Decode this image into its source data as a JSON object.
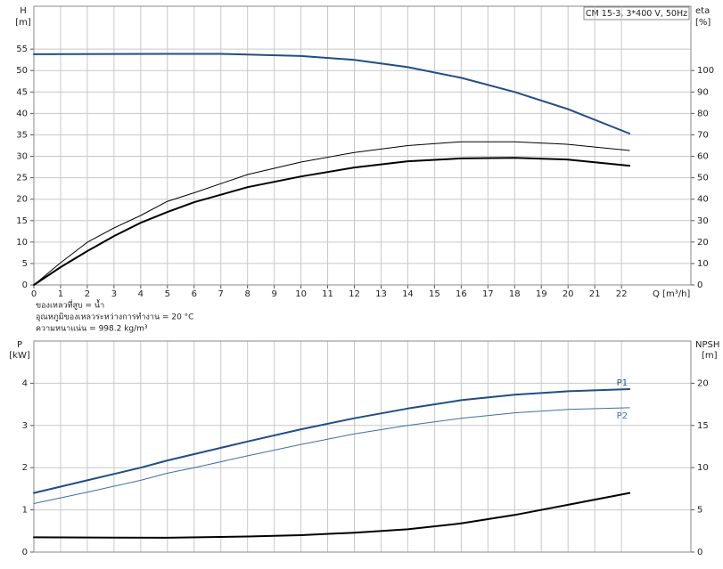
{
  "chart_data": [
    {
      "type": "line",
      "title": "CM 15-3, 3*400 V, 50Hz",
      "ylabel": "H",
      "yunit": "[m]",
      "y2label": "eta",
      "y2unit": "[%]",
      "xlabel": "Q [m³/h]",
      "notes": [
        "ของเหลวที่สูบ = น้ำ",
        "อุณหภูมิของเหลวระหว่างการทำงาน = 20 °C",
        "ความหนาแน่น = 998.2 kg/m³"
      ],
      "xlim": [
        0,
        24.6
      ],
      "xticks": [
        0,
        1,
        2,
        3,
        4,
        5,
        6,
        7,
        8,
        9,
        10,
        11,
        12,
        13,
        14,
        15,
        16,
        17,
        18,
        19,
        20,
        21,
        22
      ],
      "ylim": [
        0,
        65
      ],
      "yticks": [
        0,
        5,
        10,
        15,
        20,
        25,
        30,
        35,
        40,
        45,
        50,
        55
      ],
      "y2lim": [
        0,
        130
      ],
      "y2ticks": [
        0,
        10,
        20,
        30,
        40,
        50,
        60,
        70,
        80,
        90,
        100
      ],
      "grid": true,
      "series": [
        {
          "color": "#1f4e85",
          "width": 2,
          "x": [
            0,
            5,
            7,
            10,
            12,
            14,
            16,
            18,
            20,
            22.3
          ],
          "values": [
            53.8,
            53.9,
            53.9,
            53.4,
            52.5,
            50.8,
            48.3,
            45,
            41,
            35.3
          ]
        },
        {
          "color": "#000000",
          "width": 1,
          "axis": "y2",
          "x": [
            0,
            1,
            2,
            3,
            4,
            5,
            6,
            8,
            10,
            12,
            14,
            16,
            18,
            20,
            22.3
          ],
          "values": [
            0,
            10.4,
            19.9,
            26.6,
            32.4,
            39,
            43,
            51.5,
            57.3,
            61.8,
            65,
            66.8,
            66.8,
            65.6,
            62.7
          ]
        },
        {
          "color": "#000000",
          "width": 2,
          "axis": "y2",
          "x": [
            0,
            1,
            2,
            3,
            4,
            5,
            6,
            8,
            10,
            12,
            14,
            16,
            18,
            20,
            22.3
          ],
          "values": [
            0,
            8.3,
            15.8,
            22.8,
            29,
            34,
            38.6,
            45.6,
            50.6,
            54.8,
            57.7,
            59,
            59.3,
            58.5,
            55.6
          ]
        }
      ]
    },
    {
      "type": "line",
      "sharex": true,
      "ylabel": "P",
      "yunit": "[kW]",
      "y2label": "NPSH",
      "y2unit": "[m]",
      "xlim": [
        0,
        24.6
      ],
      "ylim": [
        0,
        5
      ],
      "yticks": [
        0,
        1,
        2,
        3,
        4
      ],
      "y2lim": [
        0,
        25
      ],
      "y2ticks": [
        0,
        5,
        10,
        15,
        20
      ],
      "grid": true,
      "series": [
        {
          "name": "P1",
          "color": "#1f4e85",
          "width": 2,
          "x": [
            0,
            2,
            4,
            5,
            6,
            8,
            10,
            12,
            14,
            16,
            18,
            20,
            22.3
          ],
          "values": [
            1.4,
            1.7,
            2.0,
            2.17,
            2.32,
            2.62,
            2.91,
            3.17,
            3.4,
            3.6,
            3.73,
            3.81,
            3.86
          ]
        },
        {
          "name": "P2",
          "color": "#3d6fa3",
          "width": 1,
          "x": [
            0,
            2,
            4,
            5,
            6,
            8,
            10,
            12,
            14,
            16,
            18,
            20,
            22.3
          ],
          "values": [
            1.15,
            1.42,
            1.7,
            1.87,
            2.0,
            2.28,
            2.55,
            2.8,
            3.0,
            3.17,
            3.3,
            3.38,
            3.42
          ]
        },
        {
          "color": "#000000",
          "width": 2,
          "axis": "y2",
          "x": [
            0,
            5,
            8,
            10,
            12,
            14,
            16,
            18,
            20,
            22.3
          ],
          "values": [
            1.75,
            1.7,
            1.85,
            2.0,
            2.3,
            2.7,
            3.4,
            4.4,
            5.6,
            7.0
          ]
        }
      ]
    }
  ]
}
